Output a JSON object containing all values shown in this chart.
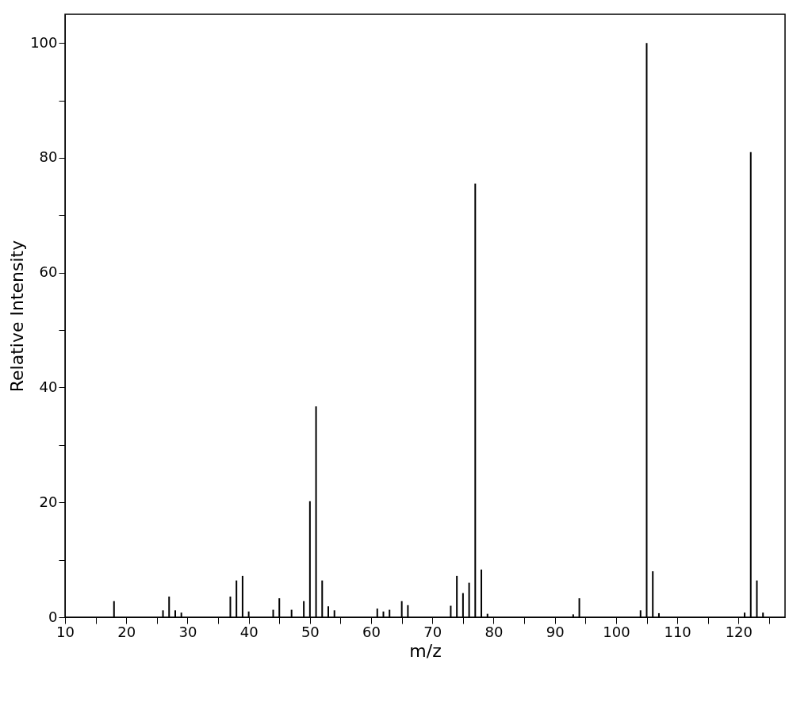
{
  "chart_data": {
    "type": "bar",
    "xlabel": "m/z",
    "ylabel": "Relative Intensity",
    "color": "#000000",
    "x": [
      18,
      26,
      27,
      28,
      29,
      37,
      38,
      39,
      40,
      44,
      45,
      47,
      49,
      50,
      51,
      52,
      53,
      54,
      61,
      62,
      63,
      65,
      66,
      73,
      74,
      75,
      76,
      77,
      78,
      79,
      93,
      94,
      104,
      105,
      106,
      107,
      121,
      122,
      123,
      124
    ],
    "values": [
      2.8,
      1.2,
      3.6,
      1.2,
      0.8,
      3.6,
      6.4,
      7.2,
      1.0,
      1.3,
      3.3,
      1.3,
      2.8,
      20.2,
      36.7,
      6.4,
      1.9,
      1.2,
      1.5,
      1.0,
      1.3,
      2.8,
      2.1,
      2.0,
      7.2,
      4.2,
      6.0,
      75.5,
      8.3,
      0.6,
      0.5,
      3.3,
      1.2,
      100,
      8.0,
      0.7,
      0.8,
      81,
      6.4,
      0.8
    ],
    "xlim": [
      10,
      127.6
    ],
    "xticks": [
      10,
      {
        "value": 15,
        "label": null
      },
      20,
      {
        "value": 25,
        "label": null
      },
      30,
      {
        "value": 35,
        "label": null
      },
      40,
      {
        "value": 45,
        "label": null
      },
      50,
      {
        "value": 55,
        "label": null
      },
      60,
      {
        "value": 65,
        "label": null
      },
      70,
      {
        "value": 75,
        "label": null
      },
      80,
      {
        "value": 85,
        "label": null
      },
      90,
      {
        "value": 95,
        "label": null
      },
      100,
      {
        "value": 105,
        "label": null
      },
      110,
      {
        "value": 115,
        "label": null
      },
      120,
      {
        "value": 125,
        "label": null
      }
    ],
    "ylim": [
      0,
      105
    ],
    "yticks": [
      0,
      {
        "value": 10,
        "label": null
      },
      20,
      {
        "value": 30,
        "label": null
      },
      40,
      {
        "value": 50,
        "label": null
      },
      60,
      {
        "value": 70,
        "label": null
      },
      80,
      {
        "value": 90,
        "label": null
      },
      100
    ],
    "grid": false
  }
}
